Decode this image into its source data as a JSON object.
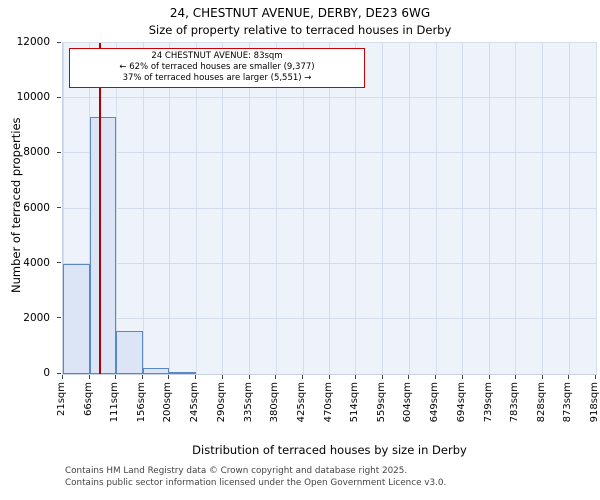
{
  "footer": {
    "line1": "Contains HM Land Registry data © Crown copyright and database right 2025.",
    "line2": "Contains public sector information licensed under the Open Government Licence v3.0."
  },
  "chart_data": {
    "type": "bar",
    "title": "24, CHESTNUT AVENUE, DERBY, DE23 6WG",
    "subtitle": "Size of property relative to terraced houses in Derby",
    "xlabel": "Distribution of terraced houses by size in Derby",
    "ylabel": "Number of terraced properties",
    "ylim": [
      0,
      12000
    ],
    "yticks": [
      0,
      2000,
      4000,
      6000,
      8000,
      10000,
      12000
    ],
    "grid": true,
    "bin_edges": [
      21,
      66,
      111,
      156,
      200,
      245,
      290,
      335,
      380,
      425,
      470,
      514,
      559,
      604,
      649,
      694,
      739,
      783,
      828,
      873,
      918
    ],
    "bin_labels": [
      "21sqm",
      "66sqm",
      "111sqm",
      "156sqm",
      "200sqm",
      "245sqm",
      "290sqm",
      "335sqm",
      "380sqm",
      "425sqm",
      "470sqm",
      "514sqm",
      "559sqm",
      "604sqm",
      "649sqm",
      "694sqm",
      "739sqm",
      "783sqm",
      "828sqm",
      "873sqm",
      "918sqm"
    ],
    "values": [
      4000,
      9300,
      1550,
      220,
      60,
      0,
      0,
      0,
      0,
      0,
      0,
      0,
      0,
      0,
      0,
      0,
      0,
      0,
      0,
      0
    ],
    "marker": {
      "value_sqm": 83,
      "label": "24 CHESTNUT AVENUE: 83sqm",
      "smaller_text": "← 62% of terraced houses are smaller (9,377)",
      "larger_text": "37% of terraced houses are larger (5,551) →",
      "color": "#b00000"
    },
    "colors": {
      "bar_fill": "#dbe5f5",
      "bar_edge": "#5b87c3",
      "grid": "#d3ddeb",
      "plot_bg": "#eef2fa",
      "annotation_border": "#cc0000"
    }
  }
}
